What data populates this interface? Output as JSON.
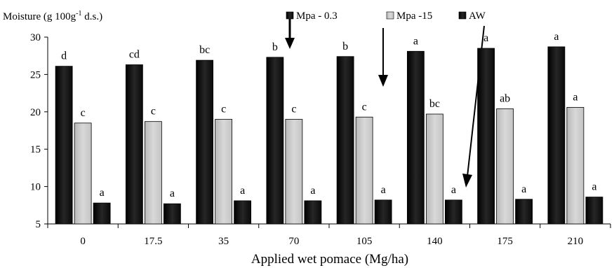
{
  "chart_data": {
    "type": "bar",
    "title": "",
    "ylabel_prefix": "Moisture (g 100g",
    "ylabel_sup": "-1",
    "ylabel_suffix": " d.s.)",
    "xlabel": "Applied wet pomace (Mg/ha)",
    "ylim": [
      5,
      30
    ],
    "yticks": [
      "5",
      "10",
      "15",
      "20",
      "25",
      "30"
    ],
    "categories": [
      "0",
      "17.5",
      "35",
      "70",
      "105",
      "140",
      "175",
      "210"
    ],
    "series": [
      {
        "name": "Mpa - 0.3",
        "color": "#1a1a1a",
        "values": [
          26.1,
          26.3,
          26.9,
          27.3,
          27.4,
          28.1,
          28.5,
          28.7
        ],
        "labels": [
          "d",
          "cd",
          "bc",
          "b",
          "b",
          "a",
          "a",
          "a"
        ]
      },
      {
        "name": "Mpa -15",
        "color": "#cccccc",
        "values": [
          18.5,
          18.7,
          19.0,
          19.0,
          19.3,
          19.7,
          20.4,
          20.6
        ],
        "labels": [
          "c",
          "c",
          "c",
          "c",
          "c",
          "bc",
          "ab",
          "a"
        ]
      },
      {
        "name": "AW",
        "color": "#1a1a1a",
        "values": [
          7.8,
          7.7,
          8.1,
          8.1,
          8.2,
          8.2,
          8.3,
          8.6
        ],
        "labels": [
          "a",
          "a",
          "a",
          "a",
          "a",
          "a",
          "a",
          "a"
        ]
      }
    ],
    "legend_position": "top-center",
    "grid": false
  }
}
